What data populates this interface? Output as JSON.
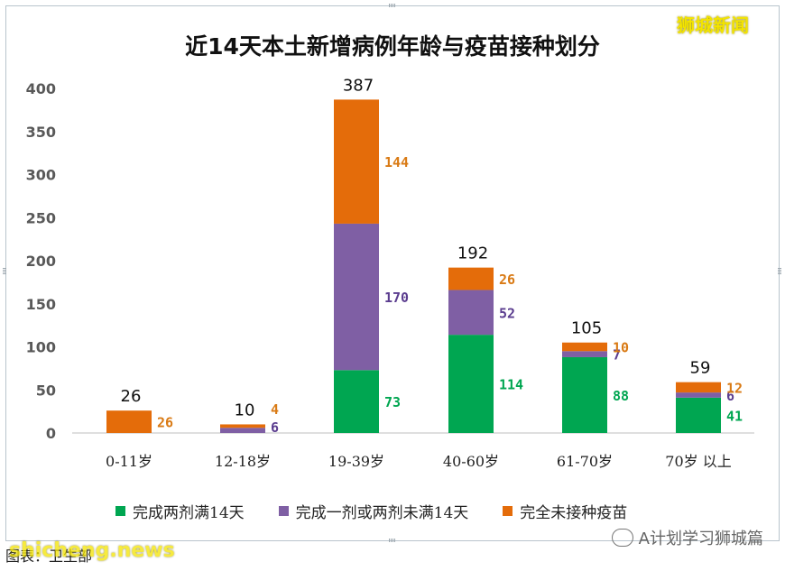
{
  "header": {
    "title": "近14天本土新增病例年龄与疫苗接种划分",
    "watermark": "狮城新闻"
  },
  "footer": {
    "caption": "图表：卫生部",
    "overlay": "shicheng.news",
    "account": "A计划学习狮城篇"
  },
  "colors": {
    "full": "#00a651",
    "partial": "#7f5fa4",
    "none": "#e46c0a",
    "full_label": "#00a651",
    "partial_label": "#5b3d8f",
    "none_label": "#d97a14"
  },
  "chart_data": {
    "type": "bar",
    "stacked": true,
    "title": "近14天本土新增病例年龄与疫苗接种划分",
    "categories": [
      "0-11岁",
      "12-18岁",
      "19-39岁",
      "40-60岁",
      "61-70岁",
      "70岁 以上"
    ],
    "series": [
      {
        "name": "完成两剂满14天",
        "values": [
          0,
          0,
          73,
          114,
          88,
          41
        ]
      },
      {
        "name": "完成一剂或两剂未满14天",
        "values": [
          0,
          6,
          170,
          52,
          7,
          6
        ]
      },
      {
        "name": "完全未接种疫苗",
        "values": [
          26,
          4,
          144,
          26,
          10,
          12
        ]
      }
    ],
    "totals": [
      26,
      10,
      387,
      192,
      105,
      59
    ],
    "segment_labels": [
      [
        "",
        "",
        "26"
      ],
      [
        "",
        "6",
        "4"
      ],
      [
        "73",
        "170",
        "144"
      ],
      [
        "114",
        "52",
        "26"
      ],
      [
        "88",
        "7",
        "10"
      ],
      [
        "41",
        "6",
        "12"
      ]
    ],
    "yticks": [
      "0",
      "50",
      "100",
      "150",
      "200",
      "250",
      "300",
      "350",
      "400"
    ],
    "ylim": [
      0,
      400
    ],
    "grid": false,
    "legend_position": "bottom",
    "xlabel": "",
    "ylabel": ""
  }
}
